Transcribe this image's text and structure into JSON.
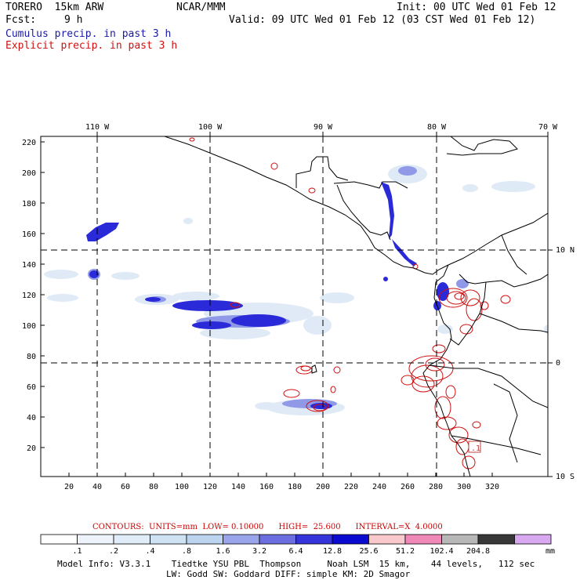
{
  "header": {
    "model": "TORERO  15km ARW",
    "center": "NCAR/MMM",
    "init": "Init: 00 UTC Wed 01 Feb 12",
    "fcst_label": "Fcst:",
    "fcst_value": "9 h",
    "valid": "Valid: 09 UTC Wed 01 Feb 12 (03 CST Wed 01 Feb 12)"
  },
  "fields": {
    "cumulus": "Cumulus precip. in past 3 h",
    "explicit": "Explicit precip. in past 3 h"
  },
  "colors": {
    "cumulus_text": "#1a1aa6",
    "explicit_text": "#d01010",
    "contour": "#d01010",
    "coast": "#000000"
  },
  "map": {
    "lon_labels": [
      "110 W",
      "100 W",
      "90 W",
      "80 W",
      "70 W"
    ],
    "lat_labels": [
      "10 N",
      "0",
      "10 S"
    ],
    "y_ticks": [
      "220",
      "200",
      "180",
      "160",
      "140",
      "120",
      "100",
      "80",
      "60",
      "40",
      "20"
    ],
    "x_ticks": [
      "20",
      "40",
      "60",
      "80",
      "100",
      "120",
      "140",
      "160",
      "180",
      "200",
      "220",
      "240",
      "260",
      "280",
      "300",
      "320"
    ],
    "box_label": ".1"
  },
  "contour_info": {
    "text": "CONTOURS:  UNITS=mm  LOW= 0.10000      HIGH=  25.600      INTERVAL=X  4.0000"
  },
  "colorbar": {
    "labels": [
      ".1",
      ".2",
      ".4",
      ".8",
      "1.6",
      "3.2",
      "6.4",
      "12.8",
      "25.6",
      "51.2",
      "102.4",
      "204.8"
    ],
    "unit": "mm",
    "colors": [
      "#ffffff",
      "#eef4fb",
      "#e0ecf8",
      "#cfe2f4",
      "#bcd4f0",
      "#9aa4ea",
      "#6c6ee0",
      "#3434d8",
      "#0a0ad0",
      "#f8c8cc",
      "#f088b8",
      "#b8b8b8",
      "#383838",
      "#d8a8f0"
    ]
  },
  "footer": {
    "line1": "Model Info: V3.3.1    Tiedtke YSU PBL  Thompson     Noah LSM  15 km,    44 levels,   112 sec",
    "line2": "LW: Godd SW: Goddard DIFF: simple KM: 2D Smagor"
  }
}
